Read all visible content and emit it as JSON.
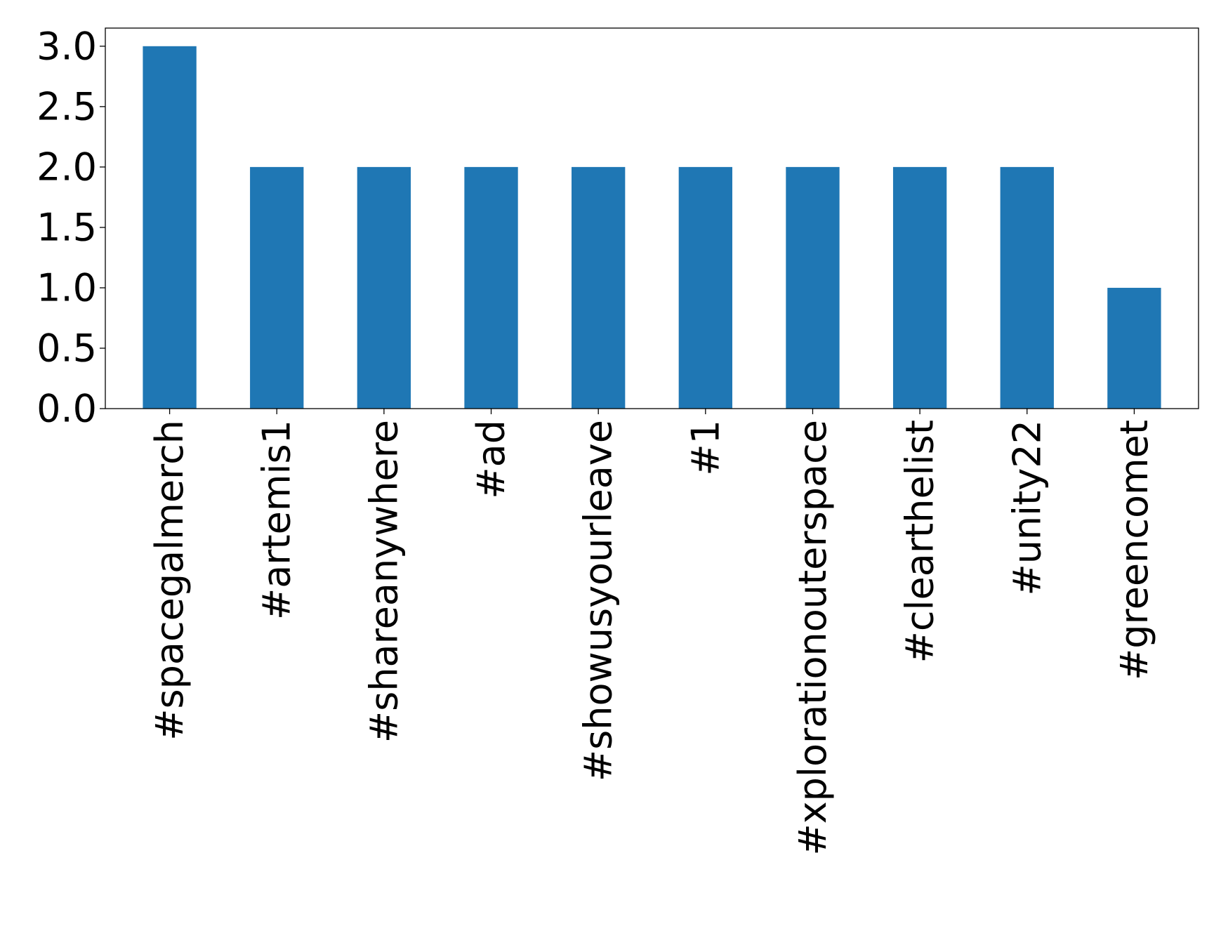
{
  "chart_data": {
    "type": "bar",
    "categories": [
      "#spacegalmerch",
      "#artemis1",
      "#shareanywhere",
      "#ad",
      "#showusyourleave",
      "#1",
      "#xplorationouterspace",
      "#clearthelist",
      "#unity22",
      "#greencomet"
    ],
    "values": [
      3,
      2,
      2,
      2,
      2,
      2,
      2,
      2,
      2,
      1
    ],
    "title": "",
    "xlabel": "",
    "ylabel": "",
    "ylim": [
      0,
      3.15
    ],
    "yticks": [
      0.0,
      0.5,
      1.0,
      1.5,
      2.0,
      2.5,
      3.0
    ],
    "ytick_labels": [
      "0.0",
      "0.5",
      "1.0",
      "1.5",
      "2.0",
      "2.5",
      "3.0"
    ],
    "grid": false,
    "legend": "none",
    "bar_color": "#1f77b4"
  }
}
